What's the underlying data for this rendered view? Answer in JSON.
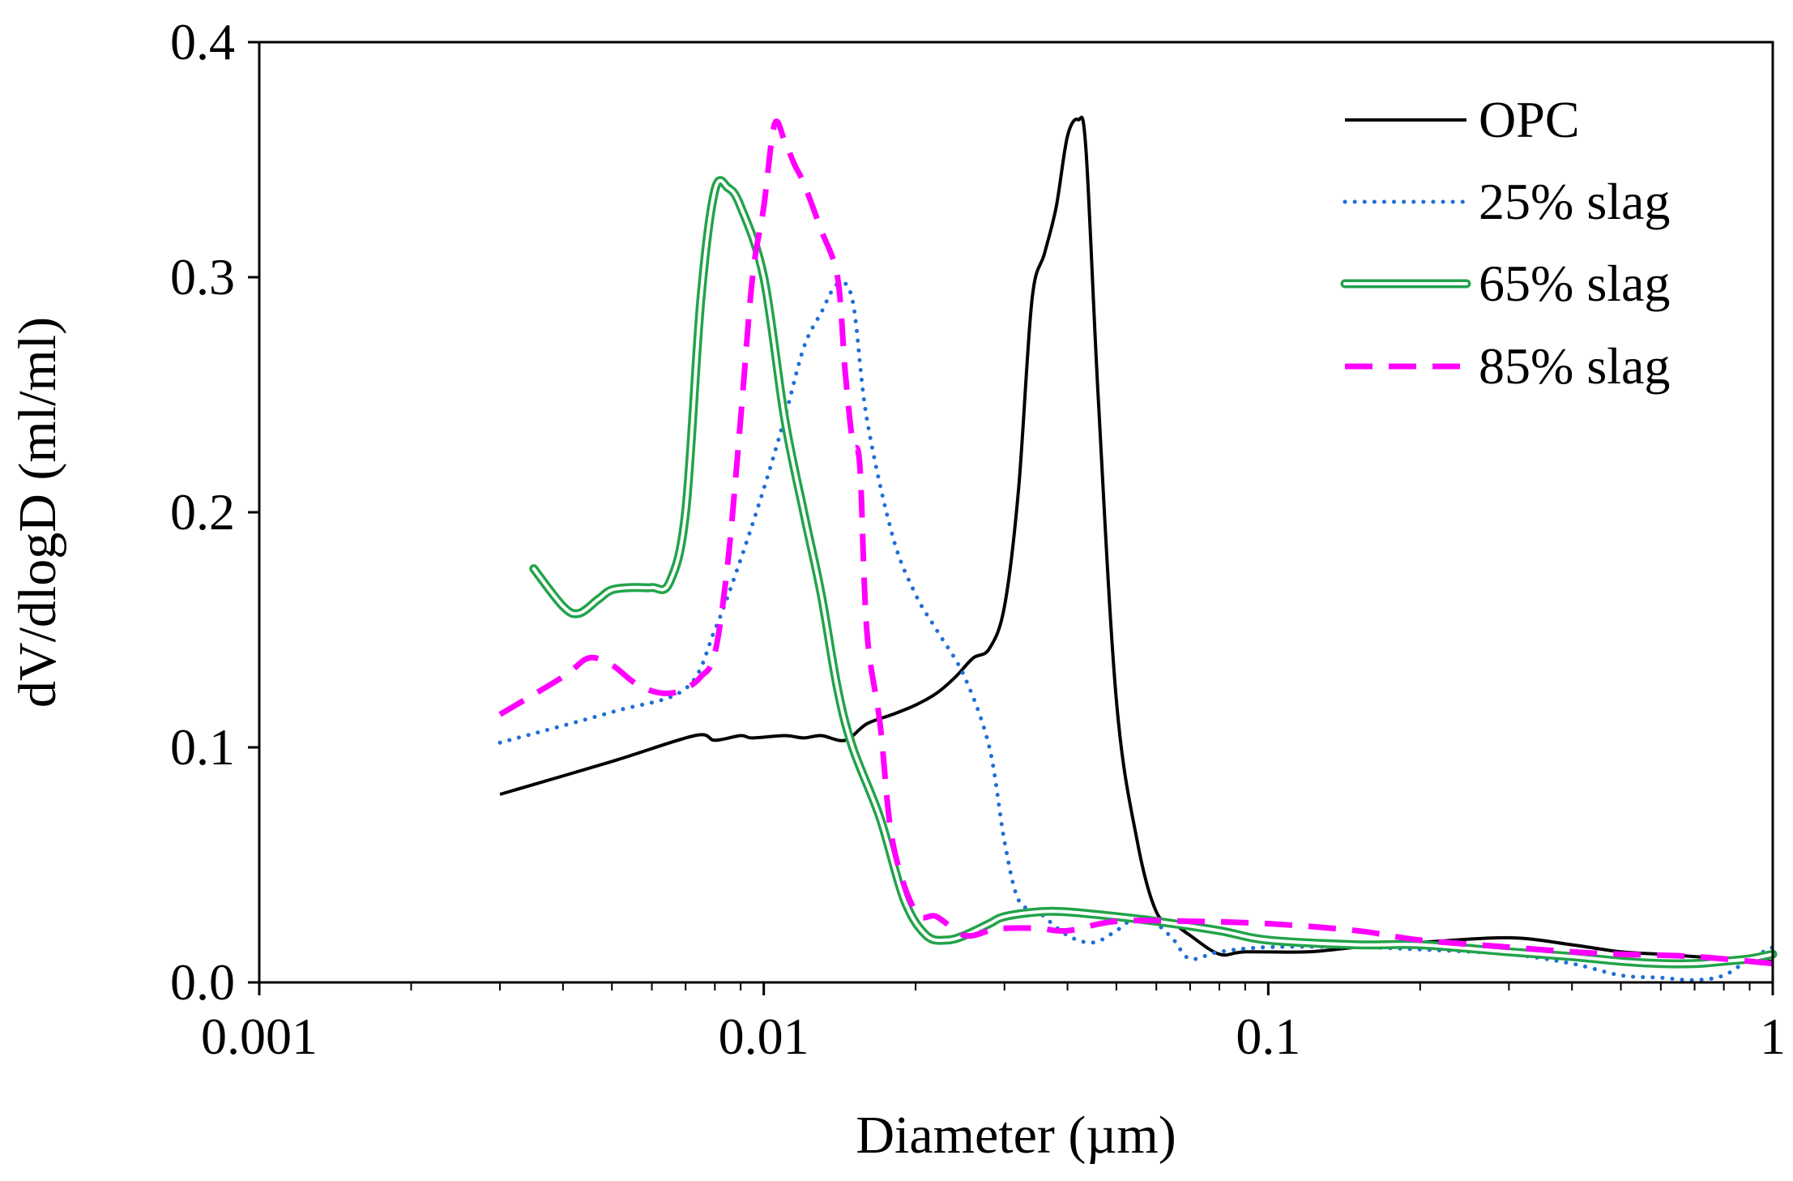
{
  "chart_data": {
    "type": "line",
    "title": "",
    "xlabel": "Diameter (µm)",
    "ylabel": "dV/dlogD (ml/ml)",
    "xscale": "log",
    "xlim": [
      0.001,
      1
    ],
    "ylim": [
      0,
      0.4
    ],
    "xticks": [
      0.001,
      0.01,
      0.1,
      1
    ],
    "xtick_labels": [
      "0.001",
      "0.01",
      "0.1",
      "1"
    ],
    "yticks": [
      0,
      0.1,
      0.2,
      0.3,
      0.4
    ],
    "ytick_labels": [
      "0.0",
      "0.1",
      "0.2",
      "0.3",
      "0.4"
    ],
    "grid": false,
    "legend_position": "top-right",
    "series": [
      {
        "name": "OPC",
        "color": "#000000",
        "style": "solid",
        "x": [
          0.003,
          0.005,
          0.0073,
          0.008,
          0.009,
          0.0095,
          0.011,
          0.012,
          0.013,
          0.0145,
          0.016,
          0.018,
          0.02,
          0.022,
          0.024,
          0.026,
          0.028,
          0.03,
          0.032,
          0.034,
          0.036,
          0.038,
          0.04,
          0.042,
          0.0435,
          0.046,
          0.05,
          0.055,
          0.06,
          0.065,
          0.07,
          0.08,
          0.09,
          0.12,
          0.15,
          0.2,
          0.3,
          0.4,
          0.5,
          0.6,
          0.7,
          0.8,
          0.9,
          1.0
        ],
        "values": [
          0.08,
          0.094,
          0.105,
          0.103,
          0.105,
          0.104,
          0.105,
          0.104,
          0.105,
          0.103,
          0.11,
          0.114,
          0.118,
          0.123,
          0.13,
          0.138,
          0.142,
          0.16,
          0.21,
          0.29,
          0.31,
          0.33,
          0.36,
          0.367,
          0.355,
          0.25,
          0.12,
          0.06,
          0.03,
          0.025,
          0.02,
          0.012,
          0.013,
          0.013,
          0.015,
          0.017,
          0.019,
          0.016,
          0.013,
          0.012,
          0.011,
          0.01,
          0.009,
          0.009
        ]
      },
      {
        "name": "25% slag",
        "color": "#1f6fd6",
        "style": "dotted",
        "x": [
          0.003,
          0.005,
          0.007,
          0.008,
          0.009,
          0.01,
          0.011,
          0.012,
          0.013,
          0.014,
          0.015,
          0.016,
          0.018,
          0.02,
          0.022,
          0.025,
          0.028,
          0.03,
          0.032,
          0.035,
          0.04,
          0.045,
          0.05,
          0.055,
          0.06,
          0.065,
          0.07,
          0.08,
          0.1,
          0.15,
          0.2,
          0.3,
          0.4,
          0.5,
          0.6,
          0.7,
          0.8,
          0.9,
          1.0
        ],
        "values": [
          0.102,
          0.115,
          0.125,
          0.15,
          0.18,
          0.21,
          0.24,
          0.27,
          0.285,
          0.297,
          0.29,
          0.24,
          0.19,
          0.165,
          0.15,
          0.13,
          0.1,
          0.06,
          0.035,
          0.03,
          0.02,
          0.017,
          0.022,
          0.028,
          0.025,
          0.018,
          0.01,
          0.013,
          0.015,
          0.015,
          0.014,
          0.012,
          0.008,
          0.003,
          0.002,
          0.001,
          0.003,
          0.01,
          0.015
        ]
      },
      {
        "name": "65% slag",
        "color": "#22a349",
        "style": "double",
        "x": [
          0.0035,
          0.004,
          0.0043,
          0.0047,
          0.005,
          0.0055,
          0.006,
          0.0065,
          0.007,
          0.0075,
          0.008,
          0.0085,
          0.009,
          0.01,
          0.011,
          0.012,
          0.013,
          0.014,
          0.015,
          0.017,
          0.019,
          0.021,
          0.023,
          0.025,
          0.028,
          0.03,
          0.035,
          0.04,
          0.05,
          0.06,
          0.08,
          0.1,
          0.15,
          0.2,
          0.3,
          0.4,
          0.5,
          0.6,
          0.7,
          0.8,
          0.9,
          1.0
        ],
        "values": [
          0.176,
          0.16,
          0.157,
          0.163,
          0.167,
          0.168,
          0.168,
          0.17,
          0.2,
          0.29,
          0.337,
          0.338,
          0.33,
          0.3,
          0.24,
          0.2,
          0.165,
          0.125,
          0.1,
          0.07,
          0.035,
          0.02,
          0.018,
          0.02,
          0.025,
          0.028,
          0.03,
          0.03,
          0.028,
          0.026,
          0.022,
          0.018,
          0.016,
          0.016,
          0.013,
          0.011,
          0.009,
          0.008,
          0.008,
          0.009,
          0.01,
          0.012
        ]
      },
      {
        "name": "85% slag",
        "color": "#ff00ff",
        "style": "dashed",
        "x": [
          0.003,
          0.004,
          0.0045,
          0.005,
          0.0055,
          0.006,
          0.0065,
          0.007,
          0.0075,
          0.008,
          0.0085,
          0.009,
          0.0095,
          0.01,
          0.0105,
          0.011,
          0.0115,
          0.012,
          0.013,
          0.014,
          0.0145,
          0.015,
          0.0155,
          0.016,
          0.017,
          0.018,
          0.02,
          0.022,
          0.025,
          0.028,
          0.03,
          0.035,
          0.04,
          0.05,
          0.07,
          0.1,
          0.15,
          0.2,
          0.3,
          0.4,
          0.5,
          0.7,
          1.0
        ],
        "values": [
          0.114,
          0.13,
          0.138,
          0.135,
          0.128,
          0.124,
          0.123,
          0.125,
          0.13,
          0.14,
          0.18,
          0.24,
          0.3,
          0.33,
          0.365,
          0.358,
          0.348,
          0.34,
          0.32,
          0.3,
          0.26,
          0.23,
          0.22,
          0.15,
          0.11,
          0.06,
          0.03,
          0.028,
          0.02,
          0.022,
          0.023,
          0.023,
          0.022,
          0.026,
          0.026,
          0.025,
          0.022,
          0.018,
          0.015,
          0.013,
          0.012,
          0.011,
          0.008
        ]
      }
    ]
  }
}
